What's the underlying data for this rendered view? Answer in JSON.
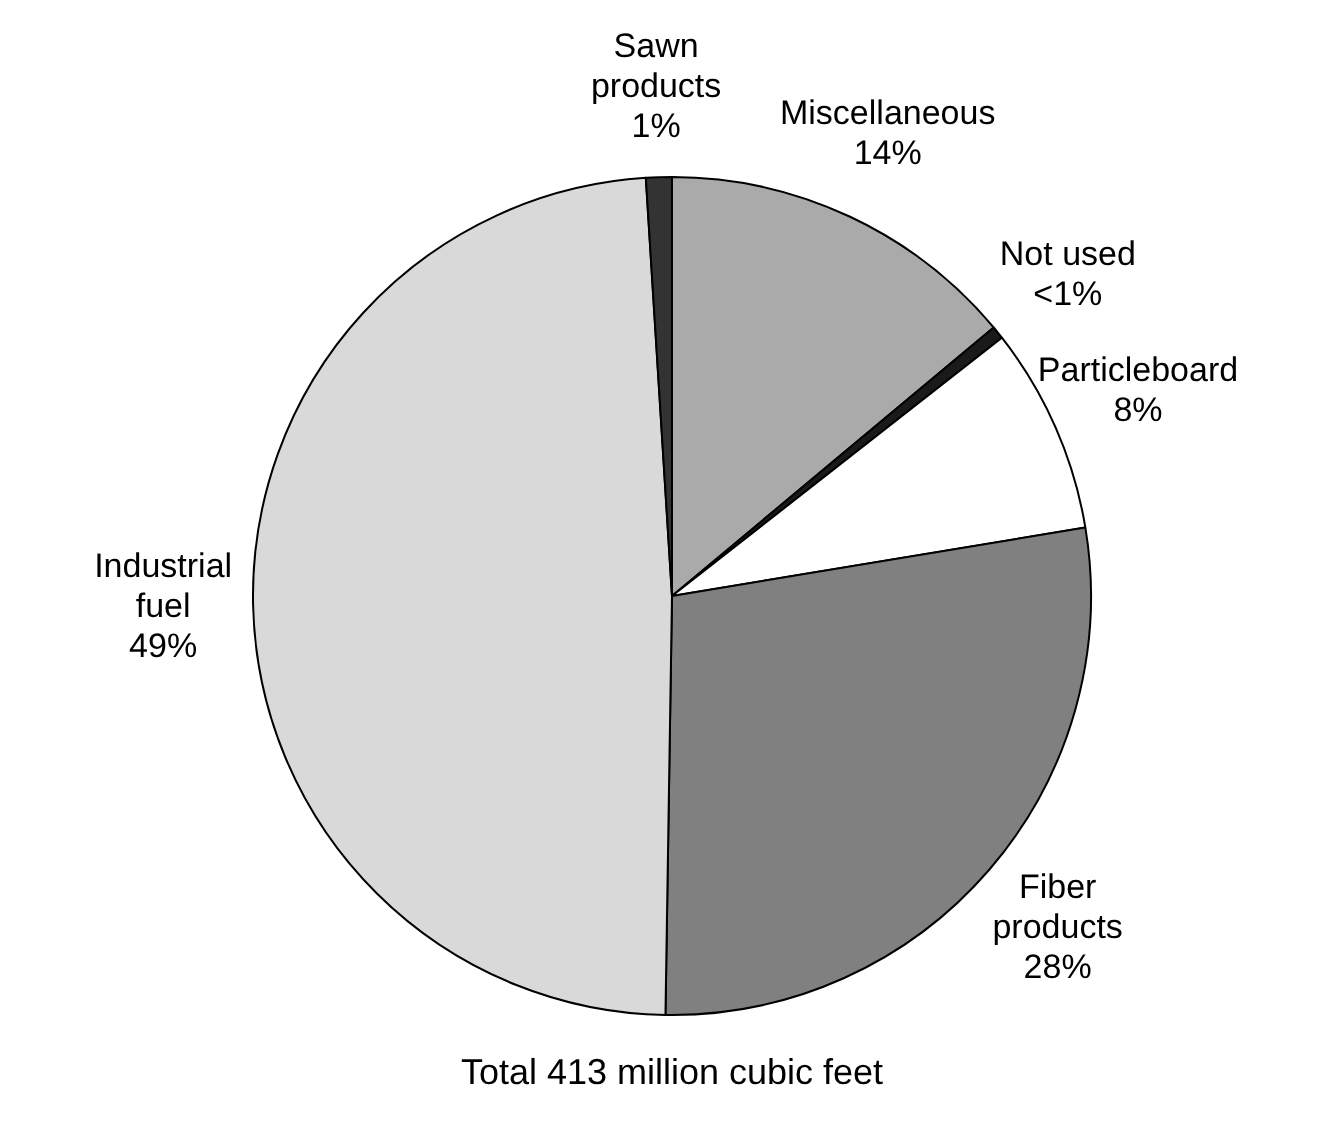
{
  "chart_data": {
    "type": "pie",
    "categories": [
      "Miscellaneous",
      "Not used",
      "Particleboard",
      "Fiber products",
      "Industrial fuel",
      "Sawn products"
    ],
    "values": [
      14,
      0.5,
      8,
      28,
      49,
      1
    ],
    "value_labels": [
      "14%",
      "<1%",
      "8%",
      "28%",
      "49%",
      "1%"
    ],
    "colors": [
      "#aaaaaa",
      "#1a1a1a",
      "#ffffff",
      "#808080",
      "#d9d9d9",
      "#333333"
    ],
    "annotations": [
      "Total 413 million cubic feet"
    ],
    "legend": false
  }
}
